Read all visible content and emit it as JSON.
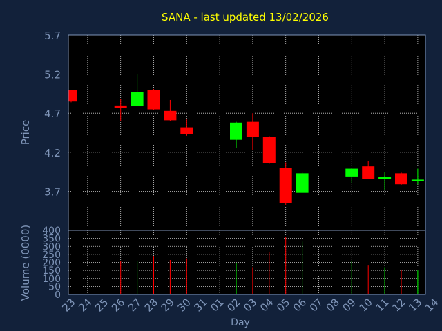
{
  "chart_data": {
    "type": "candlestick",
    "title": "SANA - last updated 13/02/2026",
    "xlabel": "Day",
    "price_panel": {
      "ylabel": "Price",
      "ylim": [
        3.2,
        5.7
      ],
      "yticks": [
        "5.7",
        "5.2",
        "4.7",
        "4.2",
        "3.7"
      ],
      "grid": true
    },
    "volume_panel": {
      "ylabel": "Volume (0000)",
      "ylim": [
        0,
        400
      ],
      "yticks": [
        "400",
        "350",
        "300",
        "250",
        "200",
        "150",
        "100",
        "50",
        "0"
      ],
      "grid": true
    },
    "x_ticks": [
      "23",
      "24",
      "25",
      "26",
      "27",
      "28",
      "29",
      "30",
      "31",
      "01",
      "02",
      "03",
      "04",
      "05",
      "06",
      "07",
      "08",
      "09",
      "10",
      "11",
      "12",
      "13",
      "14"
    ],
    "candles": [
      {
        "day": "23",
        "open": 5.0,
        "high": 5.0,
        "low": 4.84,
        "close": 4.85,
        "volume": 0
      },
      {
        "day": "26",
        "open": 4.8,
        "high": 4.88,
        "low": 4.6,
        "close": 4.77,
        "volume": 210
      },
      {
        "day": "27",
        "open": 4.79,
        "high": 5.2,
        "low": 4.79,
        "close": 4.97,
        "volume": 210
      },
      {
        "day": "28",
        "open": 5.0,
        "high": 5.01,
        "low": 4.74,
        "close": 4.75,
        "volume": 240
      },
      {
        "day": "29",
        "open": 4.73,
        "high": 4.87,
        "low": 4.6,
        "close": 4.61,
        "volume": 215
      },
      {
        "day": "30",
        "open": 4.52,
        "high": 4.62,
        "low": 4.41,
        "close": 4.43,
        "volume": 225
      },
      {
        "day": "02",
        "open": 4.36,
        "high": 4.59,
        "low": 4.26,
        "close": 4.58,
        "volume": 195
      },
      {
        "day": "03",
        "open": 4.59,
        "high": 4.7,
        "low": 4.23,
        "close": 4.4,
        "volume": 170
      },
      {
        "day": "04",
        "open": 4.4,
        "high": 4.41,
        "low": 4.05,
        "close": 4.06,
        "volume": 265
      },
      {
        "day": "05",
        "open": 4.0,
        "high": 4.07,
        "low": 3.52,
        "close": 3.55,
        "volume": 360
      },
      {
        "day": "06",
        "open": 3.68,
        "high": 3.94,
        "low": 3.68,
        "close": 3.93,
        "volume": 330
      },
      {
        "day": "09",
        "open": 3.89,
        "high": 4.0,
        "low": 3.81,
        "close": 3.99,
        "volume": 210
      },
      {
        "day": "10",
        "open": 4.02,
        "high": 4.09,
        "low": 3.86,
        "close": 3.86,
        "volume": 180
      },
      {
        "day": "11",
        "open": 3.88,
        "high": 3.95,
        "low": 3.72,
        "close": 3.88,
        "volume": 170
      },
      {
        "day": "12",
        "open": 3.93,
        "high": 3.94,
        "low": 3.78,
        "close": 3.79,
        "volume": 155
      },
      {
        "day": "13",
        "open": 3.85,
        "high": 3.99,
        "low": 3.79,
        "close": 3.85,
        "volume": 150
      }
    ],
    "colors": {
      "background": "#12213a",
      "plot_background": "#000000",
      "up": "#00ff00",
      "down": "#ff0000",
      "title": "#ffff00",
      "axis_text": "#7f95b8",
      "grid": "#d0d0d0"
    }
  }
}
